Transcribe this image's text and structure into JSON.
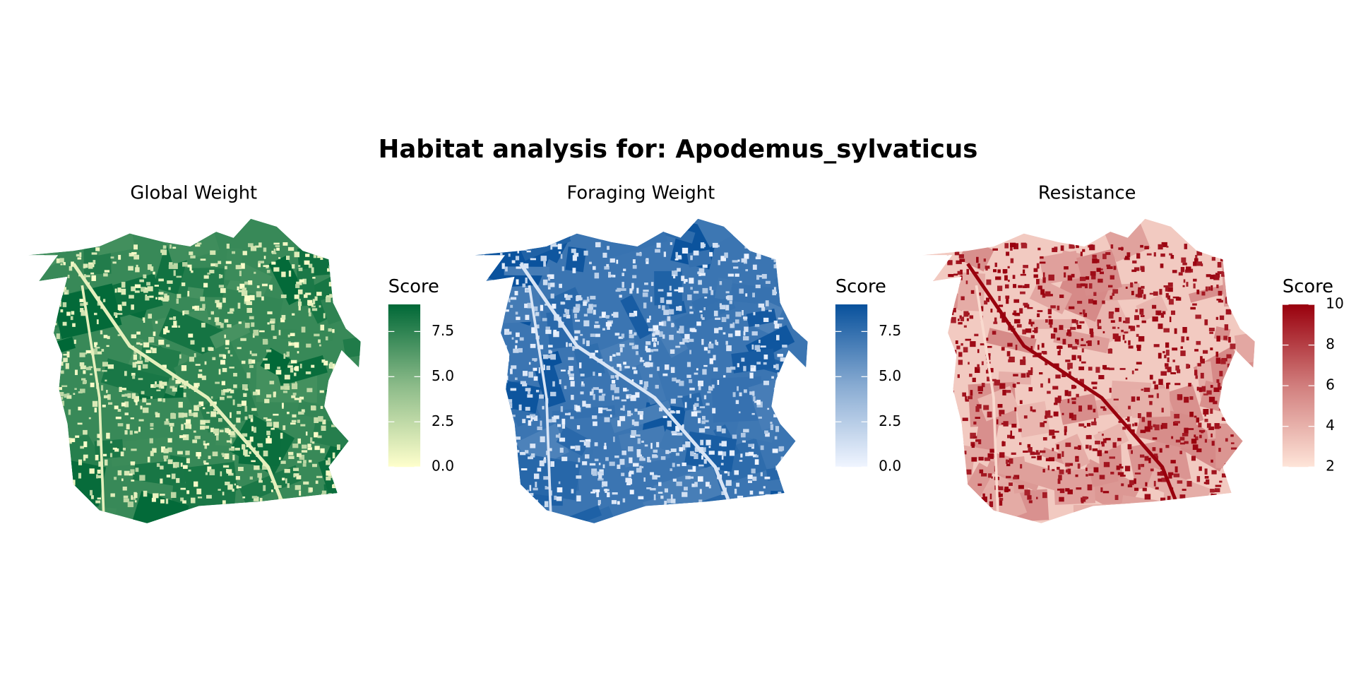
{
  "title": "Habitat analysis for: Apodemus_sylvaticus",
  "panels": [
    {
      "title": "Global Weight",
      "legend_title": "Score",
      "limits": [
        0,
        9
      ],
      "ticks": [
        7.5,
        {
          "value": 5,
          "label": "5.0"
        },
        2.5,
        {
          "value": 0,
          "label": "0.0"
        }
      ],
      "colors": [
        "#ffffcc",
        "#006837"
      ]
    },
    {
      "title": "Foraging Weight",
      "legend_title": "Score",
      "limits": [
        0,
        9
      ],
      "ticks": [
        7.5,
        {
          "value": 5,
          "label": "5.0"
        },
        2.5,
        {
          "value": 0,
          "label": "0.0"
        }
      ],
      "colors": [
        "#f0f5ff",
        "#08519c"
      ]
    },
    {
      "title": "Resistance",
      "legend_title": "Score",
      "limits": [
        2,
        10
      ],
      "ticks": [
        10,
        8,
        6,
        4,
        2
      ],
      "colors": [
        "#fee5d9",
        "#99000d"
      ]
    }
  ]
}
